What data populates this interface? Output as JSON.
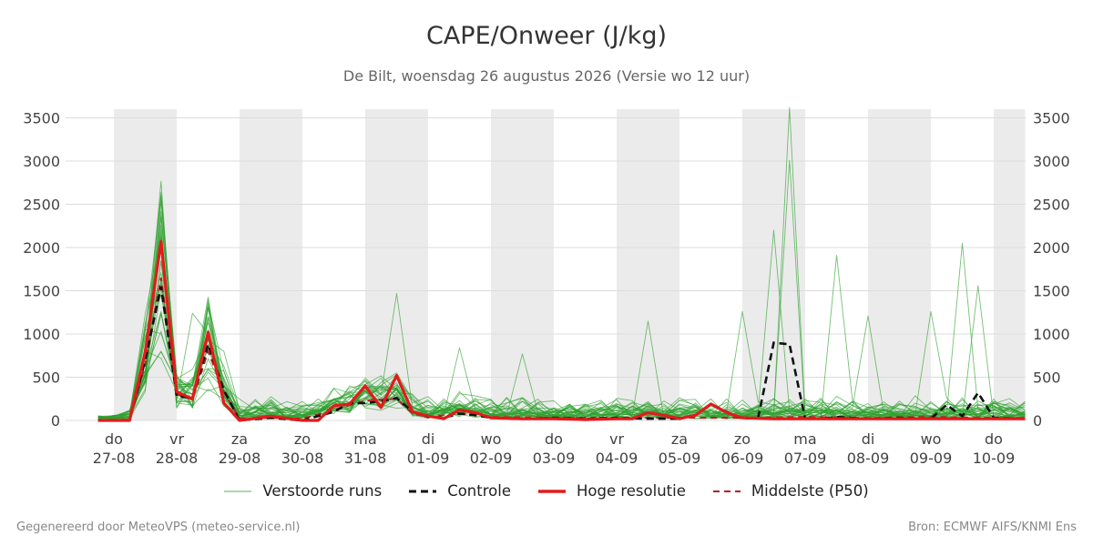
{
  "title": "CAPE/Onweer (J/kg)",
  "subtitle": "De Bilt, woensdag 26 augustus 2026 (Versie wo 12 uur)",
  "footer_left": "Gegenereerd door MeteoVPS (meteo-service.nl)",
  "footer_right": "Bron: ECMWF AIFS/KNMI Ens",
  "legend": [
    {
      "label": "Verstoorde runs",
      "color": "#2ca02c",
      "style": "thin-solid"
    },
    {
      "label": "Controle",
      "color": "#111111",
      "style": "dashed"
    },
    {
      "label": "Hoge resolutie",
      "color": "#e31a1c",
      "style": "thick-solid"
    },
    {
      "label": "Middelste (P50)",
      "color": "#b22222",
      "style": "dashed"
    }
  ],
  "chart_data": {
    "type": "line",
    "ylim": [
      0,
      3600
    ],
    "yticks": [
      0,
      500,
      1000,
      1500,
      2000,
      2500,
      3000,
      3500
    ],
    "xlim": [
      -1,
      14.5
    ],
    "x_unit": "days since 27-08",
    "x_ticks": [
      {
        "day": "do",
        "date": "27-08"
      },
      {
        "day": "vr",
        "date": "28-08"
      },
      {
        "day": "za",
        "date": "29-08"
      },
      {
        "day": "zo",
        "date": "30-08"
      },
      {
        "day": "ma",
        "date": "31-08"
      },
      {
        "day": "di",
        "date": "01-09"
      },
      {
        "day": "wo",
        "date": "02-09"
      },
      {
        "day": "do",
        "date": "03-09"
      },
      {
        "day": "vr",
        "date": "04-09"
      },
      {
        "day": "za",
        "date": "05-09"
      },
      {
        "day": "zo",
        "date": "06-09"
      },
      {
        "day": "ma",
        "date": "07-09"
      },
      {
        "day": "di",
        "date": "08-09"
      },
      {
        "day": "wo",
        "date": "09-09"
      },
      {
        "day": "do",
        "date": "10-09"
      }
    ],
    "shaded_bands": [
      [
        0,
        1
      ],
      [
        2,
        3
      ],
      [
        4,
        5
      ],
      [
        6,
        7
      ],
      [
        8,
        9
      ],
      [
        10,
        11
      ],
      [
        12,
        13
      ],
      [
        14,
        14.5
      ]
    ],
    "grid": true,
    "right_axis": true,
    "legend_position": "bottom",
    "high_res": {
      "x": [
        -0.25,
        0.25,
        0.5,
        0.75,
        1.0,
        1.25,
        1.5,
        1.75,
        2.0,
        2.5,
        3.0,
        3.25,
        3.5,
        3.75,
        4.0,
        4.25,
        4.5,
        4.75,
        5.0,
        5.25,
        5.5,
        5.75,
        6.0,
        6.5,
        7.0,
        7.5,
        8.0,
        8.25,
        8.5,
        8.75,
        9.0,
        9.25,
        9.5,
        9.75,
        10.0,
        10.5,
        11.0,
        11.5,
        12.0,
        12.5,
        13.0,
        13.5,
        14.0,
        14.5
      ],
      "y": [
        0,
        0,
        800,
        2070,
        330,
        250,
        1020,
        200,
        0,
        50,
        0,
        0,
        170,
        190,
        400,
        150,
        520,
        100,
        50,
        20,
        120,
        90,
        30,
        20,
        20,
        10,
        20,
        20,
        90,
        60,
        20,
        60,
        190,
        90,
        30,
        20,
        20,
        20,
        20,
        20,
        20,
        20,
        20,
        20
      ]
    },
    "control": {
      "x": [
        -0.25,
        0.25,
        0.5,
        0.75,
        1.0,
        1.25,
        1.5,
        1.75,
        2.0,
        2.5,
        3.0,
        3.25,
        3.5,
        3.75,
        4.0,
        4.25,
        4.5,
        4.75,
        5.0,
        5.25,
        5.5,
        5.75,
        6.0,
        6.5,
        7.0,
        7.5,
        8.0,
        8.5,
        9.0,
        9.25,
        9.5,
        9.75,
        10.0,
        10.25,
        10.5,
        10.75,
        11.0,
        11.25,
        11.5,
        12.0,
        12.5,
        13.0,
        13.25,
        13.5,
        13.75,
        14.0,
        14.5
      ],
      "y": [
        0,
        0,
        700,
        1550,
        280,
        260,
        880,
        350,
        0,
        30,
        0,
        50,
        100,
        200,
        200,
        220,
        260,
        100,
        40,
        30,
        80,
        60,
        30,
        20,
        30,
        20,
        30,
        20,
        20,
        60,
        190,
        100,
        20,
        30,
        900,
        880,
        20,
        20,
        40,
        20,
        30,
        20,
        180,
        50,
        320,
        30,
        20
      ]
    },
    "median": {
      "x": [
        -0.25,
        0.25,
        0.5,
        0.75,
        1.0,
        1.25,
        1.5,
        1.75,
        2.0,
        2.5,
        3.0,
        3.5,
        4.0,
        4.5,
        4.75,
        5.0,
        5.5,
        6.0,
        7.0,
        8.0,
        9.0,
        10.0,
        11.0,
        12.0,
        13.0,
        14.0,
        14.5
      ],
      "y": [
        0,
        0,
        650,
        1650,
        300,
        240,
        800,
        330,
        20,
        30,
        20,
        120,
        230,
        250,
        80,
        40,
        80,
        40,
        30,
        30,
        30,
        30,
        40,
        30,
        40,
        30,
        30
      ]
    },
    "ensemble_peaks": [
      {
        "x": 0.75,
        "y": 2580
      },
      {
        "x": 0.75,
        "y": 2150
      },
      {
        "x": 1.25,
        "y": 1240
      },
      {
        "x": 1.5,
        "y": 1310
      },
      {
        "x": 4.5,
        "y": 1470
      },
      {
        "x": 5.5,
        "y": 840
      },
      {
        "x": 6.5,
        "y": 770
      },
      {
        "x": 8.5,
        "y": 1150
      },
      {
        "x": 10.0,
        "y": 1260
      },
      {
        "x": 10.5,
        "y": 2200
      },
      {
        "x": 10.75,
        "y": 3620
      },
      {
        "x": 10.75,
        "y": 3010
      },
      {
        "x": 11.5,
        "y": 1910
      },
      {
        "x": 12.0,
        "y": 1210
      },
      {
        "x": 13.0,
        "y": 1260
      },
      {
        "x": 13.5,
        "y": 2050
      },
      {
        "x": 13.75,
        "y": 1560
      }
    ]
  }
}
